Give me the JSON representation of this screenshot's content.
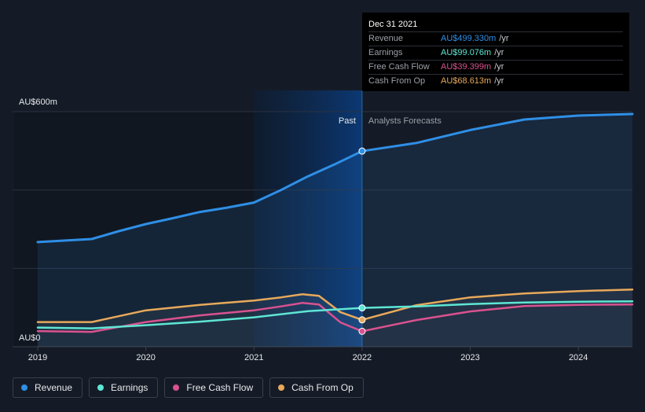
{
  "tooltip": {
    "date": "Dec 31 2021",
    "rows": [
      {
        "label": "Revenue",
        "value": "AU$499.330m",
        "unit": "/yr",
        "color": "#2f8fe6"
      },
      {
        "label": "Earnings",
        "value": "AU$99.076m",
        "unit": "/yr",
        "color": "#5ee6d4"
      },
      {
        "label": "Free Cash Flow",
        "value": "AU$39.399m",
        "unit": "/yr",
        "color": "#d9528f"
      },
      {
        "label": "Cash From Op",
        "value": "AU$68.613m",
        "unit": "/yr",
        "color": "#e8a95a"
      }
    ]
  },
  "legend": [
    {
      "label": "Revenue",
      "color": "#2f8fe6"
    },
    {
      "label": "Earnings",
      "color": "#5ee6d4"
    },
    {
      "label": "Free Cash Flow",
      "color": "#d9528f"
    },
    {
      "label": "Cash From Op",
      "color": "#e8a95a"
    }
  ],
  "chart_data": {
    "type": "line",
    "ylabel_top": "AU$600m",
    "ylabel_bottom": "AU$0",
    "ylim": [
      0,
      600
    ],
    "xlim": [
      2019,
      2024.5
    ],
    "x_ticks": [
      "2019",
      "2020",
      "2021",
      "2022",
      "2023",
      "2024"
    ],
    "past_label": "Past",
    "forecast_label": "Analysts Forecasts",
    "divider_x": 2022,
    "series": [
      {
        "name": "Revenue",
        "color": "#2f8fe6",
        "points": [
          [
            2019,
            267
          ],
          [
            2019.5,
            275
          ],
          [
            2019.75,
            295
          ],
          [
            2020,
            313
          ],
          [
            2020.25,
            328
          ],
          [
            2020.5,
            344
          ],
          [
            2020.75,
            355
          ],
          [
            2021,
            368
          ],
          [
            2021.25,
            400
          ],
          [
            2021.5,
            435
          ],
          [
            2021.75,
            466
          ],
          [
            2022,
            499.33
          ],
          [
            2022.5,
            520
          ],
          [
            2023,
            553
          ],
          [
            2023.5,
            580
          ],
          [
            2024,
            590
          ],
          [
            2024.5,
            594
          ]
        ]
      },
      {
        "name": "Earnings",
        "color": "#5ee6d4",
        "points": [
          [
            2019,
            49
          ],
          [
            2019.5,
            47
          ],
          [
            2020,
            55
          ],
          [
            2020.5,
            64
          ],
          [
            2021,
            75
          ],
          [
            2021.5,
            91
          ],
          [
            2022,
            99.076
          ],
          [
            2022.5,
            103
          ],
          [
            2023,
            109
          ],
          [
            2023.5,
            113
          ],
          [
            2024,
            115
          ],
          [
            2024.5,
            116
          ]
        ]
      },
      {
        "name": "Free Cash Flow",
        "color": "#d9528f",
        "points": [
          [
            2019,
            40
          ],
          [
            2019.5,
            38
          ],
          [
            2020,
            63
          ],
          [
            2020.5,
            80
          ],
          [
            2021,
            93
          ],
          [
            2021.25,
            103
          ],
          [
            2021.45,
            112
          ],
          [
            2021.6,
            108
          ],
          [
            2021.8,
            62
          ],
          [
            2022,
            39.399
          ],
          [
            2022.5,
            68
          ],
          [
            2023,
            90
          ],
          [
            2023.5,
            104
          ],
          [
            2024,
            107
          ],
          [
            2024.5,
            108
          ]
        ]
      },
      {
        "name": "Cash From Op",
        "color": "#e8a95a",
        "points": [
          [
            2019,
            63
          ],
          [
            2019.5,
            63
          ],
          [
            2020,
            93
          ],
          [
            2020.5,
            107
          ],
          [
            2021,
            118
          ],
          [
            2021.25,
            126
          ],
          [
            2021.45,
            134
          ],
          [
            2021.6,
            130
          ],
          [
            2021.8,
            88
          ],
          [
            2022,
            68.613
          ],
          [
            2022.5,
            106
          ],
          [
            2023,
            126
          ],
          [
            2023.5,
            136
          ],
          [
            2024,
            142
          ],
          [
            2024.5,
            146
          ]
        ]
      }
    ]
  }
}
